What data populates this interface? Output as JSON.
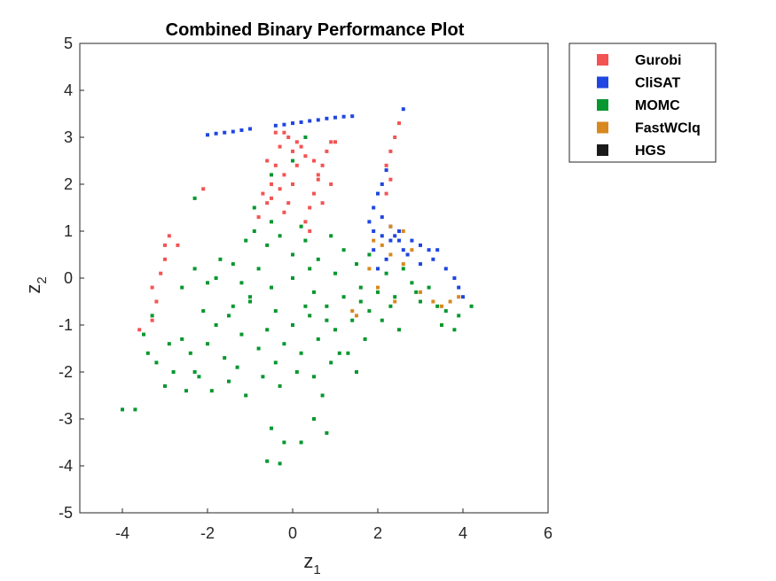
{
  "chart_data": {
    "type": "scatter",
    "title": "Combined Binary Performance Plot",
    "xlabel": "z",
    "xlabel_sub": "1",
    "ylabel": "z",
    "ylabel_sub": "2",
    "xlim": [
      -5,
      6
    ],
    "ylim": [
      -5,
      5
    ],
    "xticks": [
      "-4",
      "-2",
      "0",
      "2",
      "4",
      "6"
    ],
    "yticks": [
      "-5",
      "-4",
      "-3",
      "-2",
      "-1",
      "0",
      "1",
      "2",
      "3",
      "4",
      "5"
    ],
    "grid": false,
    "legend_position": "outside-top-right",
    "series": [
      {
        "name": "Gurobi",
        "color": "#F45353",
        "points": [
          [
            -3.6,
            -1.1
          ],
          [
            -3.3,
            -0.9
          ],
          [
            -3.2,
            -0.5
          ],
          [
            -3.3,
            -0.2
          ],
          [
            -3.1,
            0.1
          ],
          [
            -3.0,
            0.4
          ],
          [
            -3.0,
            0.7
          ],
          [
            -2.9,
            0.9
          ],
          [
            -2.7,
            0.7
          ],
          [
            -2.1,
            1.9
          ],
          [
            -0.8,
            1.3
          ],
          [
            -0.6,
            1.6
          ],
          [
            -0.5,
            2.0
          ],
          [
            -0.4,
            2.4
          ],
          [
            -0.3,
            2.8
          ],
          [
            -0.2,
            3.1
          ],
          [
            -0.1,
            3.0
          ],
          [
            0.0,
            2.7
          ],
          [
            0.1,
            2.4
          ],
          [
            -0.2,
            2.2
          ],
          [
            -0.3,
            1.9
          ],
          [
            -0.5,
            1.7
          ],
          [
            -0.7,
            1.8
          ],
          [
            0.0,
            2.0
          ],
          [
            -0.1,
            1.6
          ],
          [
            -0.2,
            1.4
          ],
          [
            0.3,
            1.2
          ],
          [
            0.4,
            1.5
          ],
          [
            0.5,
            1.8
          ],
          [
            0.6,
            2.1
          ],
          [
            0.7,
            2.4
          ],
          [
            0.8,
            2.7
          ],
          [
            0.9,
            2.9
          ],
          [
            1.0,
            2.9
          ],
          [
            0.5,
            2.5
          ],
          [
            0.6,
            2.2
          ],
          [
            0.2,
            2.8
          ],
          [
            0.3,
            2.6
          ],
          [
            0.4,
            1.0
          ],
          [
            2.2,
            2.4
          ],
          [
            2.3,
            2.7
          ],
          [
            2.4,
            3.0
          ],
          [
            2.5,
            3.3
          ],
          [
            2.3,
            2.1
          ],
          [
            2.2,
            1.8
          ],
          [
            -0.4,
            3.1
          ],
          [
            0.1,
            2.9
          ],
          [
            -0.6,
            2.5
          ],
          [
            0.9,
            2.0
          ],
          [
            0.7,
            1.6
          ]
        ]
      },
      {
        "name": "CliSAT",
        "color": "#1F46E0",
        "points": [
          [
            -2.0,
            3.05
          ],
          [
            -1.8,
            3.08
          ],
          [
            -1.6,
            3.1
          ],
          [
            -1.4,
            3.12
          ],
          [
            -1.2,
            3.15
          ],
          [
            -1.0,
            3.18
          ],
          [
            -0.4,
            3.25
          ],
          [
            -0.2,
            3.27
          ],
          [
            0.0,
            3.3
          ],
          [
            0.2,
            3.32
          ],
          [
            0.4,
            3.35
          ],
          [
            0.6,
            3.37
          ],
          [
            0.8,
            3.4
          ],
          [
            1.0,
            3.42
          ],
          [
            1.2,
            3.44
          ],
          [
            1.4,
            3.45
          ],
          [
            2.6,
            3.6
          ],
          [
            2.2,
            2.3
          ],
          [
            2.1,
            2.0
          ],
          [
            2.0,
            1.8
          ],
          [
            1.9,
            1.5
          ],
          [
            1.8,
            1.2
          ],
          [
            1.9,
            1.0
          ],
          [
            2.1,
            0.9
          ],
          [
            2.3,
            0.8
          ],
          [
            2.5,
            0.8
          ],
          [
            2.8,
            0.8
          ],
          [
            3.0,
            0.7
          ],
          [
            3.2,
            0.6
          ],
          [
            3.4,
            0.6
          ],
          [
            3.0,
            0.3
          ],
          [
            3.3,
            0.4
          ],
          [
            3.6,
            0.2
          ],
          [
            3.8,
            0.0
          ],
          [
            3.9,
            -0.2
          ],
          [
            4.0,
            -0.4
          ],
          [
            2.4,
            0.9
          ],
          [
            2.6,
            0.6
          ],
          [
            2.7,
            0.5
          ],
          [
            2.2,
            0.4
          ],
          [
            2.0,
            0.2
          ],
          [
            1.9,
            0.6
          ],
          [
            2.1,
            1.3
          ],
          [
            2.3,
            1.1
          ],
          [
            2.5,
            1.0
          ]
        ]
      },
      {
        "name": "MOMC",
        "color": "#06972F",
        "points": [
          [
            -4.0,
            -2.8
          ],
          [
            -3.7,
            -2.8
          ],
          [
            -3.5,
            -1.2
          ],
          [
            -3.4,
            -1.6
          ],
          [
            -3.2,
            -1.8
          ],
          [
            -3.0,
            -2.3
          ],
          [
            -2.8,
            -2.0
          ],
          [
            -2.6,
            -1.3
          ],
          [
            -2.4,
            -1.6
          ],
          [
            -2.2,
            -2.1
          ],
          [
            -2.0,
            -1.4
          ],
          [
            -1.8,
            -1.0
          ],
          [
            -1.6,
            -1.7
          ],
          [
            -1.4,
            -0.6
          ],
          [
            -1.2,
            -1.2
          ],
          [
            -1.0,
            -0.4
          ],
          [
            -0.8,
            -1.5
          ],
          [
            -0.6,
            -1.1
          ],
          [
            -0.4,
            -1.8
          ],
          [
            -0.2,
            -1.4
          ],
          [
            0.0,
            -1.0
          ],
          [
            0.2,
            -1.6
          ],
          [
            0.4,
            -0.8
          ],
          [
            0.6,
            -1.3
          ],
          [
            0.8,
            -0.6
          ],
          [
            1.0,
            -1.1
          ],
          [
            1.2,
            -0.4
          ],
          [
            1.4,
            -0.9
          ],
          [
            1.6,
            -0.2
          ],
          [
            1.8,
            -0.7
          ],
          [
            2.0,
            -0.3
          ],
          [
            2.2,
            0.1
          ],
          [
            2.4,
            -0.4
          ],
          [
            2.6,
            0.2
          ],
          [
            2.8,
            -0.1
          ],
          [
            3.0,
            -0.5
          ],
          [
            3.2,
            -0.2
          ],
          [
            3.4,
            -0.6
          ],
          [
            3.6,
            -0.7
          ],
          [
            3.9,
            -0.8
          ],
          [
            4.2,
            -0.6
          ],
          [
            -2.6,
            -0.2
          ],
          [
            -2.3,
            0.2
          ],
          [
            -2.0,
            -0.1
          ],
          [
            -1.7,
            0.4
          ],
          [
            -1.4,
            0.3
          ],
          [
            -1.1,
            0.8
          ],
          [
            -0.9,
            1.0
          ],
          [
            -0.6,
            0.7
          ],
          [
            -0.3,
            0.9
          ],
          [
            0.0,
            0.5
          ],
          [
            0.3,
            0.8
          ],
          [
            0.6,
            0.4
          ],
          [
            0.9,
            0.9
          ],
          [
            1.2,
            0.6
          ],
          [
            1.5,
            0.3
          ],
          [
            1.8,
            0.5
          ],
          [
            -2.3,
            -2.0
          ],
          [
            -1.9,
            -2.4
          ],
          [
            -1.5,
            -2.2
          ],
          [
            -1.1,
            -2.5
          ],
          [
            -0.7,
            -2.1
          ],
          [
            -0.3,
            -2.3
          ],
          [
            0.1,
            -2.0
          ],
          [
            0.5,
            -2.1
          ],
          [
            0.9,
            -1.8
          ],
          [
            1.3,
            -1.6
          ],
          [
            1.7,
            -1.3
          ],
          [
            -0.5,
            -3.2
          ],
          [
            0.2,
            -3.5
          ],
          [
            0.5,
            -3.0
          ],
          [
            0.8,
            -3.3
          ],
          [
            -0.6,
            -3.9
          ],
          [
            -0.3,
            -3.95
          ],
          [
            -0.2,
            -3.5
          ],
          [
            -1.0,
            -0.5
          ],
          [
            -0.5,
            -0.2
          ],
          [
            0.0,
            0.0
          ],
          [
            0.5,
            -0.3
          ],
          [
            1.0,
            0.1
          ],
          [
            -1.5,
            -0.8
          ],
          [
            -0.8,
            0.2
          ],
          [
            0.3,
            -0.6
          ],
          [
            1.1,
            -1.6
          ],
          [
            -2.1,
            -0.7
          ],
          [
            -2.9,
            -1.4
          ],
          [
            -3.3,
            -0.8
          ],
          [
            -2.5,
            -2.4
          ],
          [
            -1.3,
            -1.9
          ],
          [
            0.7,
            -2.5
          ],
          [
            1.5,
            -2.0
          ],
          [
            2.1,
            -0.9
          ],
          [
            2.5,
            -1.1
          ],
          [
            3.5,
            -1.0
          ],
          [
            3.8,
            -1.1
          ],
          [
            -0.9,
            1.5
          ],
          [
            -0.5,
            1.2
          ],
          [
            0.2,
            1.1
          ],
          [
            0.0,
            2.5
          ],
          [
            -0.5,
            2.2
          ],
          [
            0.3,
            3.0
          ],
          [
            -2.3,
            1.7
          ],
          [
            -1.8,
            0.0
          ],
          [
            -1.2,
            -0.1
          ],
          [
            -0.4,
            -0.7
          ],
          [
            0.4,
            0.2
          ],
          [
            0.8,
            -0.9
          ],
          [
            1.6,
            -0.5
          ],
          [
            2.3,
            -0.6
          ],
          [
            2.9,
            -0.3
          ]
        ]
      },
      {
        "name": "FastWClq",
        "color": "#D7891F",
        "points": [
          [
            1.9,
            0.8
          ],
          [
            2.1,
            0.7
          ],
          [
            2.3,
            0.5
          ],
          [
            2.6,
            0.3
          ],
          [
            1.5,
            -0.8
          ],
          [
            2.0,
            -0.2
          ],
          [
            3.3,
            -0.5
          ],
          [
            3.5,
            -0.6
          ],
          [
            3.7,
            -0.5
          ],
          [
            3.9,
            -0.4
          ],
          [
            2.3,
            1.1
          ],
          [
            1.8,
            0.2
          ],
          [
            2.4,
            -0.5
          ],
          [
            3.0,
            -0.3
          ],
          [
            2.8,
            0.6
          ],
          [
            1.4,
            -0.7
          ],
          [
            2.6,
            1.0
          ]
        ]
      },
      {
        "name": "HGS",
        "color": "#1A1A1A",
        "points": []
      }
    ]
  }
}
